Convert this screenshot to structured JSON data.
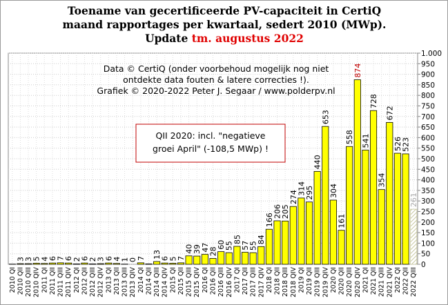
{
  "chart_data": {
    "type": "bar",
    "title_lines": [
      "Toename van gecertificeerde PV-capaciteit in CertiQ",
      "maand rapportages per kwartaal, sedert 2010 (MWp)."
    ],
    "title_update_prefix": "Update",
    "title_update_date": "tm. augustus 2022",
    "title_update_color": "#e00000",
    "annotation_lines": [
      "Data © CertiQ (onder voorbehoud mogelijk  nog niet",
      "ontdekte data fouten & latere correcties !).",
      "Grafiek  © 2020-2022 Peter J. Segaar / www.polderpv.nl"
    ],
    "box_lines": [
      "QII 2020:  incl. \"negatieve",
      "groei April\"  (-108,5 MWp)  !"
    ],
    "box_color": "#c00000",
    "categories": [
      "2010 QI",
      "2010 QII",
      "2010 QIII",
      "2010 QIV",
      "2011 QI",
      "2011 QII",
      "2011 QIII",
      "2011 QIV",
      "2012 QI",
      "2012 QII",
      "2012 QIII",
      "2012 QIV",
      "2013 QI",
      "2013 QII",
      "2013 QIII",
      "2013 QIV",
      "2014 QI",
      "2014 QII",
      "2014 QIII",
      "2014 QIV",
      "2015 QI",
      "2015 QII",
      "2015 QIII",
      "2015 QIV",
      "2016 QI",
      "2016 QII",
      "2016 QIII",
      "2016 QIV",
      "2017 QI",
      "2017 QII",
      "2017 QIII",
      "2017 QIV",
      "2018 QI",
      "2018 QII",
      "2018 QIII",
      "2018 QIV",
      "2019 QI",
      "2019 QII",
      "2019 QIII",
      "2019 QIV",
      "2020 QI",
      "2020 QII",
      "2020 QIII",
      "2020 QIV",
      "2021 QI",
      "2021 QII",
      "2021 QIII",
      "2021 QIV",
      "2022 QI",
      "2022 QII",
      "2022 QIII"
    ],
    "values": [
      1,
      3,
      3,
      5,
      4,
      6,
      7,
      6,
      2,
      6,
      2,
      3,
      6,
      4,
      1,
      0,
      7,
      2,
      13,
      6,
      5,
      7,
      40,
      39,
      47,
      28,
      60,
      55,
      85,
      57,
      55,
      84,
      166,
      206,
      205,
      274,
      314,
      295,
      440,
      653,
      304,
      161,
      558,
      874,
      541,
      728,
      354,
      672,
      526,
      523,
      261
    ],
    "value_labels": [
      null,
      "3",
      "3",
      "5",
      "4",
      "6",
      "7",
      "6",
      "2",
      "6",
      "2",
      "3",
      "6",
      "4",
      "1",
      "0",
      "7",
      null,
      "13",
      "6",
      "5",
      "7",
      "40",
      "39",
      "47",
      "28",
      "60",
      "55",
      "85",
      "57",
      "55",
      "84",
      "166",
      "206",
      "205",
      "274",
      "314",
      "295",
      "440",
      "653",
      "304",
      "161",
      "558",
      "874",
      "541",
      "728",
      "354",
      "672",
      "526",
      "523",
      "261"
    ],
    "color": "#ffff00",
    "max_label_color": "#c00000",
    "hatch_index": 50,
    "hatch_color": "#c8c8a0",
    "hatch_label_color": "#aaaaaa",
    "ylim": [
      0,
      1000
    ],
    "yticks": [
      0,
      50,
      100,
      150,
      200,
      250,
      300,
      350,
      400,
      450,
      500,
      550,
      600,
      650,
      700,
      750,
      800,
      850,
      900,
      950,
      {
        "value": 1000,
        "label": "1.000"
      }
    ],
    "grid": true
  }
}
